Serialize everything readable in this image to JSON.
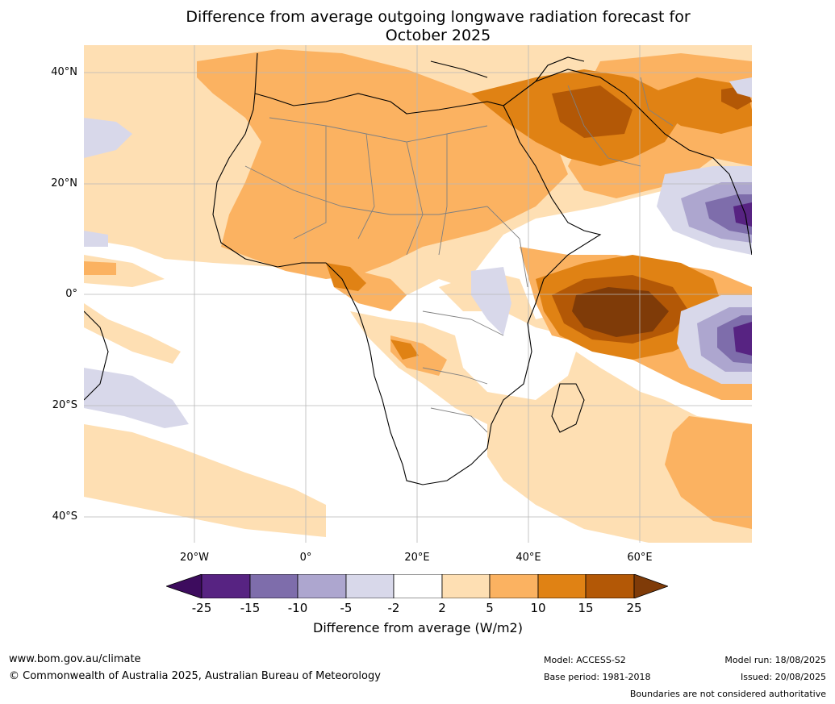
{
  "title_line1": "Difference from average outgoing longwave radiation forecast for",
  "title_line2": "October 2025",
  "lat_labels": [
    "40°N",
    "20°N",
    "0°",
    "20°S",
    "40°S"
  ],
  "lon_labels": [
    "20°W",
    "0°",
    "20°E",
    "40°E",
    "60°E"
  ],
  "colorbar": {
    "title": "Difference from average (W/m2)",
    "labels": [
      "-25",
      "-15",
      "-10",
      "-5",
      "-2",
      "2",
      "5",
      "10",
      "15",
      "25"
    ],
    "colors": [
      "#3d0c5e",
      "#572382",
      "#7e6dab",
      "#ada6cf",
      "#d8d8ea",
      "#ffffff",
      "#fedfb3",
      "#fbb261",
      "#e08214",
      "#b35806",
      "#7f3b08"
    ]
  },
  "footer": {
    "website": "www.bom.gov.au/climate",
    "copyright": "© Commonwealth of Australia 2025, Australian Bureau of Meteorology",
    "model": "Model: ACCESS-S2",
    "base_period": "Base period: 1981-2018",
    "model_run": "Model run: 18/08/2025",
    "issued": "Issued: 20/08/2025",
    "disclaimer": "Boundaries are not considered authoritative"
  }
}
